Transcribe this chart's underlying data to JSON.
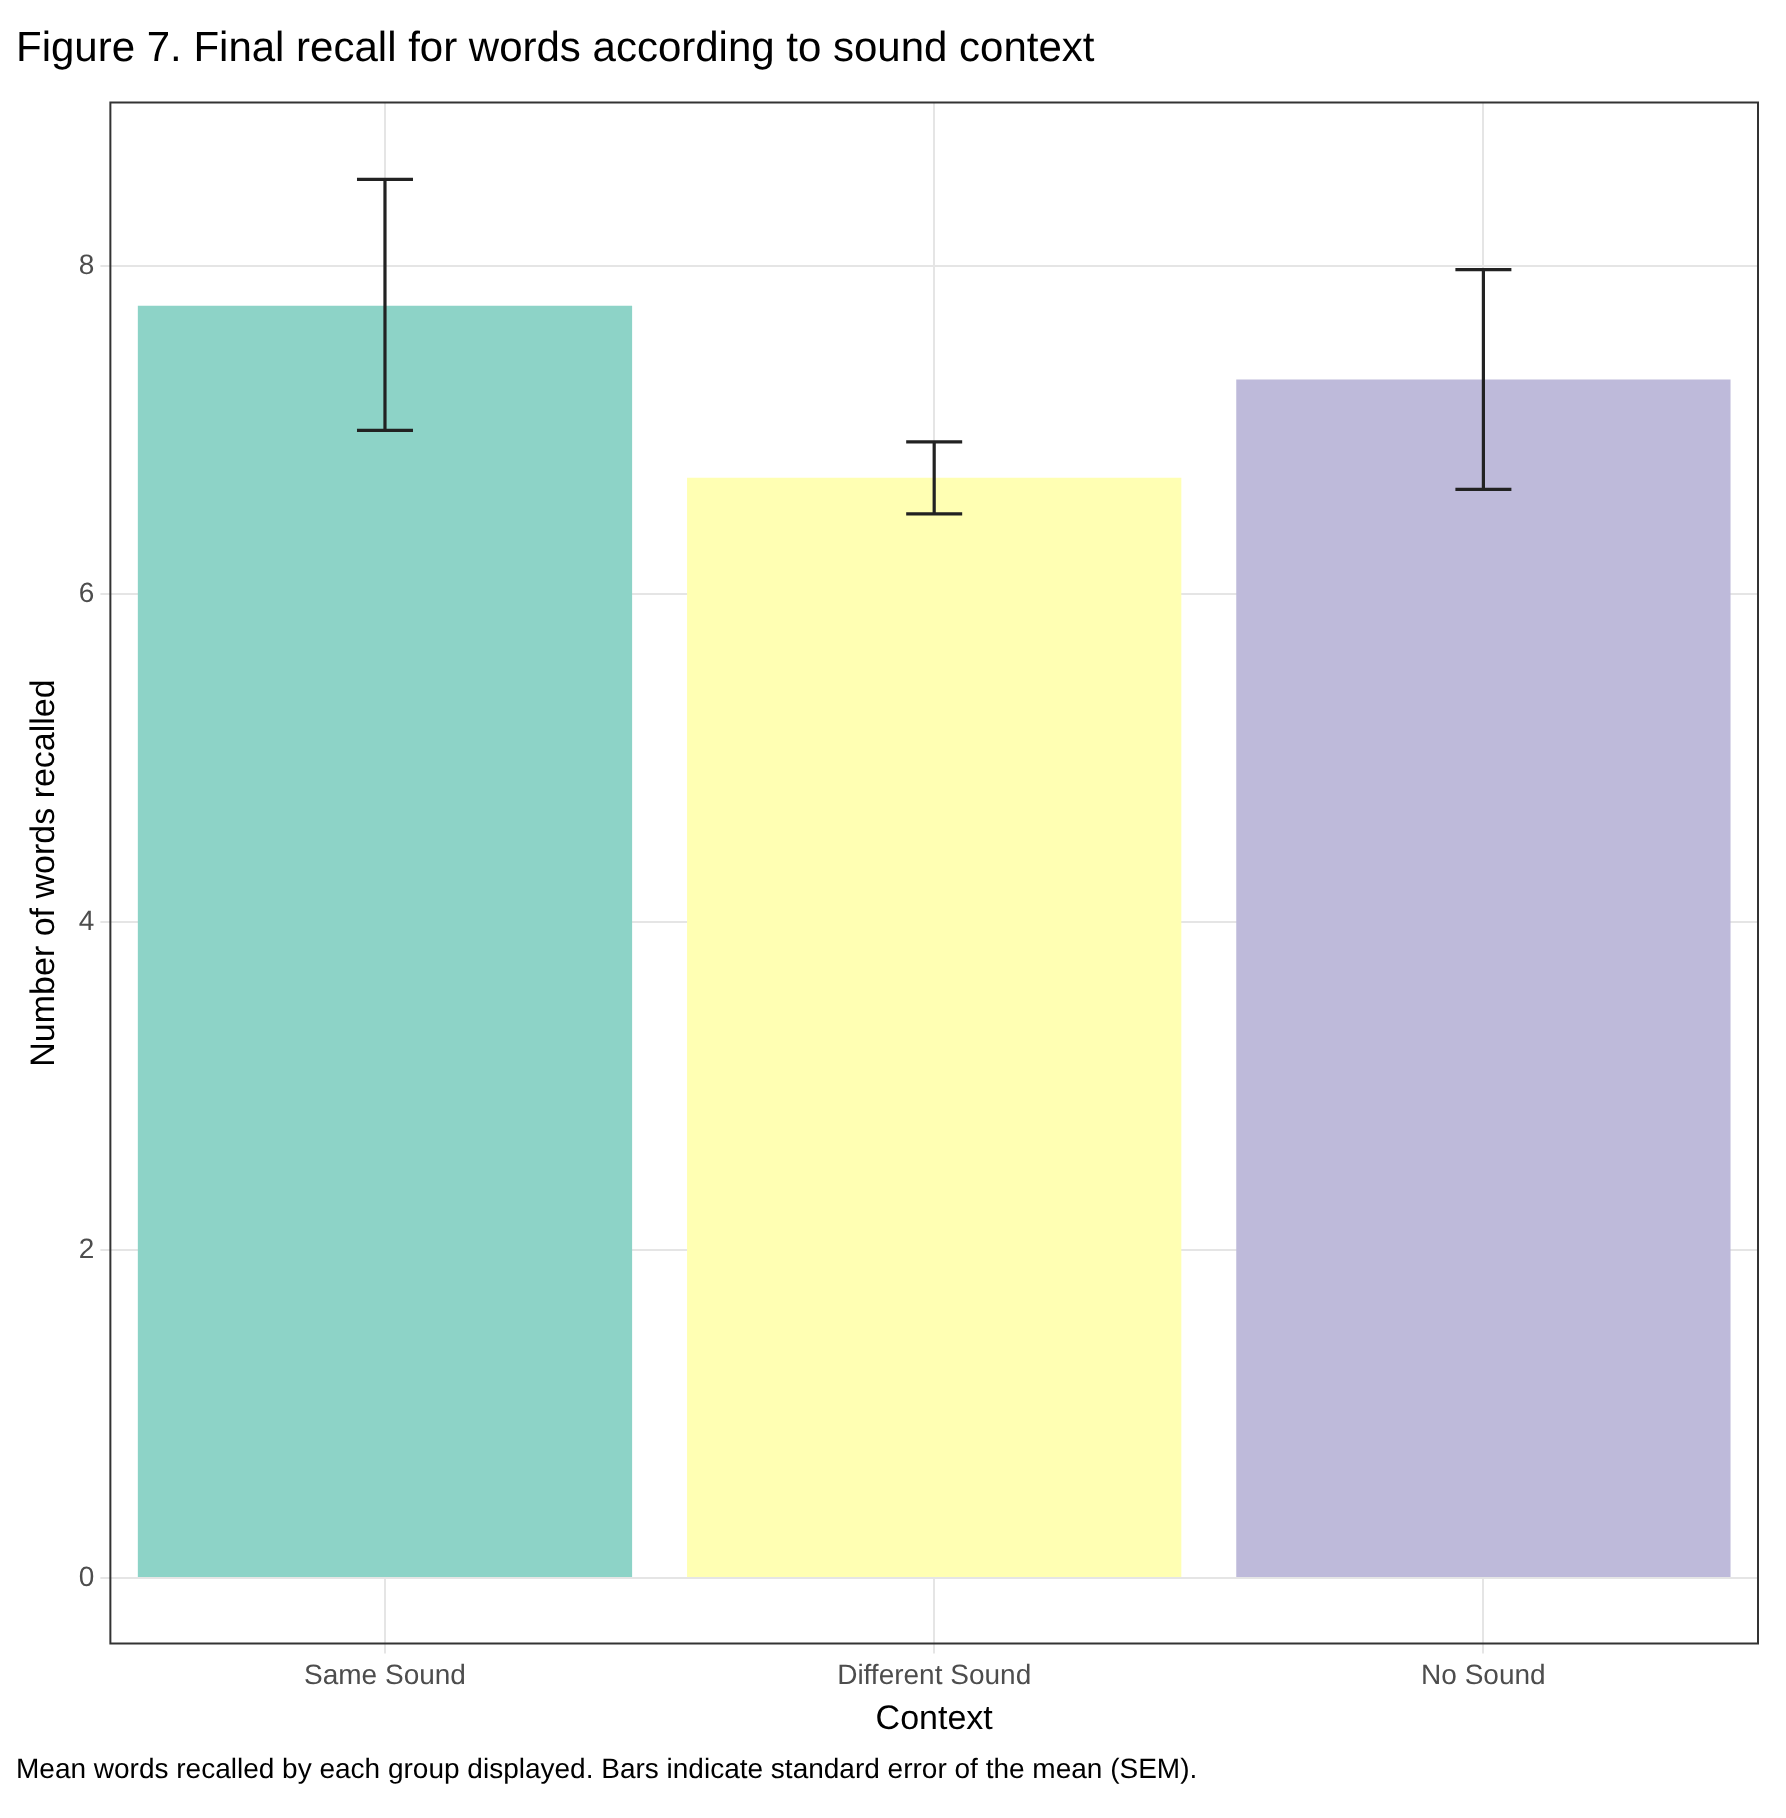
{
  "chart_data": {
    "type": "bar",
    "title": "Figure 7. Final recall for words according to sound context",
    "xlabel": "Context",
    "ylabel": "Number of words recalled",
    "categories": [
      "Same Sound",
      "Different Sound",
      "No Sound"
    ],
    "values": [
      7.76,
      6.71,
      7.31
    ],
    "colors": [
      "#8dd3c7",
      "#ffffb3",
      "#bebada"
    ],
    "errors": [
      [
        7.0,
        8.53
      ],
      [
        6.49,
        6.93
      ],
      [
        6.64,
        7.98
      ]
    ],
    "ylim": [
      -0.4,
      9.0
    ],
    "yticks": [
      0,
      2,
      4,
      6,
      8
    ],
    "grid": true,
    "legend": false,
    "annotations": [
      "Mean words recalled by each group displayed. Bars indicate standard error of the mean (SEM)."
    ]
  }
}
